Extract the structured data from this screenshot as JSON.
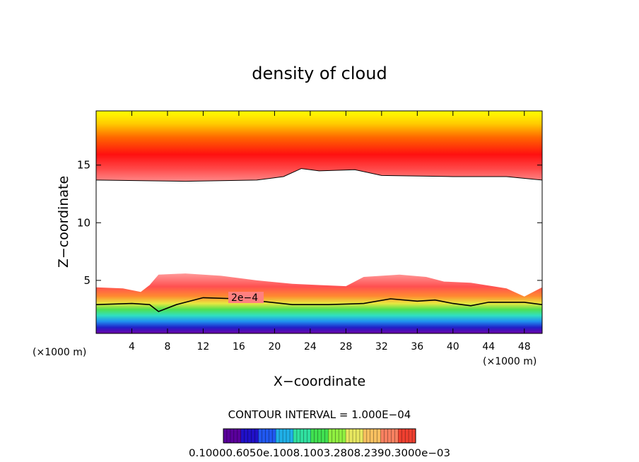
{
  "chart_data": {
    "type": "heatmap",
    "title": "density of cloud",
    "xlabel": "X−coordinate",
    "ylabel": "Z−coordinate",
    "x_unit_left": "(×1000 m)",
    "x_unit_right": "(×1000 m)",
    "xlim": [
      0,
      50
    ],
    "ylim": [
      0.4,
      19.7
    ],
    "x_ticks": [
      4,
      8,
      12,
      16,
      20,
      24,
      28,
      32,
      36,
      40,
      44,
      48
    ],
    "y_ticks": [
      5,
      10,
      15
    ],
    "grid": false,
    "contour_label": "2e−4",
    "contour_interval": "CONTOUR INTERVAL = 1.000E−04",
    "colorbar_labels": "0.10000.6050e.1008.1003.2808.2390.3000e−03",
    "colorbar_colors": [
      "#5a009c",
      "#2010c8",
      "#2058f0",
      "#20b0e8",
      "#30e0a0",
      "#40e050",
      "#90f040",
      "#e8e860",
      "#f8c060",
      "#f88060",
      "#f04030"
    ],
    "upper_layer": {
      "bottom_edge": [
        [
          0,
          13.7
        ],
        [
          10,
          13.6
        ],
        [
          18,
          13.7
        ],
        [
          21,
          14.0
        ],
        [
          23,
          14.7
        ],
        [
          25,
          14.5
        ],
        [
          29,
          14.6
        ],
        [
          32,
          14.1
        ],
        [
          40,
          14.0
        ],
        [
          46,
          14.0
        ],
        [
          50,
          13.7
        ]
      ],
      "colors": [
        "#ffff00",
        "#ff6600",
        "#ff0000",
        "#ff7a7a"
      ]
    },
    "lower_layer": {
      "top_edge": [
        [
          0,
          4.4
        ],
        [
          3,
          4.3
        ],
        [
          5,
          4.0
        ],
        [
          6,
          4.6
        ],
        [
          7,
          5.5
        ],
        [
          10,
          5.6
        ],
        [
          14,
          5.4
        ],
        [
          18,
          5.0
        ],
        [
          22,
          4.7
        ],
        [
          25,
          4.6
        ],
        [
          28,
          4.5
        ],
        [
          30,
          5.3
        ],
        [
          34,
          5.5
        ],
        [
          37,
          5.3
        ],
        [
          39,
          4.9
        ],
        [
          42,
          4.8
        ],
        [
          46,
          4.3
        ],
        [
          48,
          3.6
        ],
        [
          50,
          4.4
        ]
      ],
      "contour_2e4": [
        [
          0,
          2.9
        ],
        [
          4,
          3.0
        ],
        [
          6,
          2.9
        ],
        [
          7,
          2.3
        ],
        [
          9,
          2.9
        ],
        [
          12,
          3.5
        ],
        [
          16,
          3.4
        ],
        [
          22,
          2.9
        ],
        [
          26,
          2.9
        ],
        [
          30,
          3.0
        ],
        [
          33,
          3.4
        ],
        [
          36,
          3.2
        ],
        [
          38,
          3.3
        ],
        [
          40,
          3.0
        ],
        [
          42,
          2.8
        ],
        [
          44,
          3.1
        ],
        [
          48,
          3.1
        ],
        [
          50,
          2.9
        ]
      ]
    }
  }
}
